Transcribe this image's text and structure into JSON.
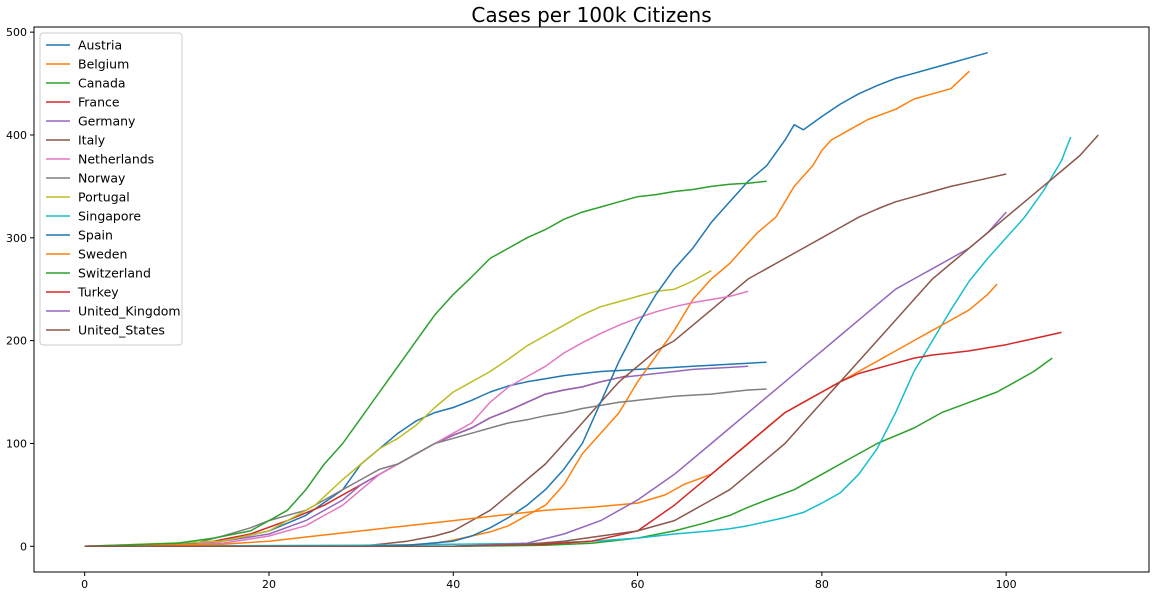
{
  "chart_data": {
    "type": "line",
    "title": "Cases per 100k Citizens",
    "xlabel": "",
    "ylabel": "",
    "xlim": [
      -5.5,
      115.5
    ],
    "ylim": [
      -25,
      505
    ],
    "xticks": [
      0,
      20,
      40,
      60,
      80,
      100
    ],
    "yticks": [
      0,
      100,
      200,
      300,
      400,
      500
    ],
    "grid": false,
    "legend_position": "top-left",
    "series": [
      {
        "name": "Austria",
        "color": "#1f77b4",
        "x": [
          0,
          10,
          15,
          20,
          24,
          28,
          30,
          32,
          34,
          36,
          38,
          40,
          42,
          44,
          46,
          48,
          50,
          52,
          54,
          56,
          58,
          60,
          62,
          64,
          66,
          68,
          70,
          72,
          74
        ],
        "y": [
          0,
          1,
          5,
          15,
          30,
          55,
          80,
          95,
          110,
          122,
          130,
          135,
          142,
          150,
          156,
          160,
          163,
          166,
          168,
          170,
          171,
          172,
          173,
          174,
          175,
          176,
          177,
          178,
          179
        ]
      },
      {
        "name": "Belgium",
        "color": "#ff7f0e",
        "x": [
          0,
          20,
          30,
          35,
          38,
          40,
          42,
          44,
          46,
          48,
          50,
          52,
          54,
          56,
          58,
          60,
          62,
          64,
          66,
          68,
          70,
          72,
          73,
          75,
          77,
          79,
          80,
          81,
          83,
          85,
          88,
          90,
          92,
          94,
          96
        ],
        "y": [
          0,
          0,
          0,
          1,
          3,
          6,
          10,
          14,
          20,
          30,
          40,
          60,
          90,
          110,
          130,
          160,
          185,
          210,
          240,
          260,
          275,
          295,
          305,
          320,
          350,
          370,
          385,
          395,
          405,
          415,
          425,
          435,
          440,
          445,
          462
        ]
      },
      {
        "name": "Canada",
        "color": "#2ca02c",
        "x": [
          0,
          40,
          50,
          55,
          60,
          64,
          67,
          70,
          72,
          74,
          77,
          80,
          83,
          86,
          90,
          93,
          96,
          99,
          101,
          103,
          105
        ],
        "y": [
          0,
          0,
          1,
          3,
          8,
          15,
          22,
          30,
          38,
          45,
          55,
          70,
          85,
          100,
          115,
          130,
          140,
          150,
          160,
          170,
          183
        ]
      },
      {
        "name": "France",
        "color": "#d62728",
        "x": [
          0,
          10,
          14,
          18,
          22,
          26,
          30,
          34,
          38,
          40,
          42,
          44,
          46,
          48,
          50,
          52,
          54,
          56,
          58,
          59
        ],
        "y": [
          0,
          2,
          5,
          12,
          25,
          40,
          60,
          80,
          100,
          108,
          115,
          125,
          132,
          140,
          148,
          152,
          155,
          160,
          164,
          166
        ]
      },
      {
        "name": "Germany",
        "color": "#9467bd",
        "x": [
          0,
          10,
          15,
          20,
          24,
          28,
          30,
          32,
          34,
          36,
          38,
          40,
          42,
          44,
          46,
          48,
          50,
          52,
          54,
          56,
          58,
          60,
          62,
          64,
          66,
          68,
          70,
          72
        ],
        "y": [
          0,
          1,
          5,
          12,
          25,
          45,
          60,
          70,
          80,
          90,
          100,
          108,
          115,
          125,
          132,
          140,
          148,
          152,
          155,
          160,
          164,
          166,
          168,
          170,
          172,
          173,
          174,
          175
        ]
      },
      {
        "name": "Italy",
        "color": "#8c564b",
        "x": [
          0,
          30,
          35,
          38,
          40,
          42,
          44,
          46,
          48,
          50,
          52,
          54,
          56,
          58,
          60,
          62,
          64,
          66,
          68,
          70,
          72,
          74,
          76,
          78,
          80,
          82,
          84,
          86,
          88,
          90,
          92,
          94,
          96,
          98,
          100
        ],
        "y": [
          0,
          0,
          5,
          10,
          15,
          25,
          35,
          50,
          65,
          80,
          100,
          120,
          140,
          160,
          175,
          190,
          200,
          215,
          230,
          245,
          260,
          270,
          280,
          290,
          300,
          310,
          320,
          328,
          335,
          340,
          345,
          350,
          354,
          358,
          362
        ]
      },
      {
        "name": "Netherlands",
        "color": "#e377c2",
        "x": [
          0,
          15,
          20,
          24,
          26,
          28,
          30,
          32,
          34,
          36,
          38,
          40,
          42,
          44,
          46,
          48,
          50,
          52,
          54,
          56,
          58,
          60,
          62,
          64,
          66,
          68,
          70,
          72
        ],
        "y": [
          0,
          3,
          10,
          20,
          30,
          40,
          55,
          70,
          80,
          90,
          100,
          110,
          120,
          140,
          155,
          165,
          175,
          188,
          198,
          207,
          215,
          222,
          228,
          233,
          237,
          240,
          243,
          248
        ]
      },
      {
        "name": "Norway",
        "color": "#7f7f7f",
        "x": [
          0,
          12,
          15,
          18,
          20,
          22,
          24,
          26,
          28,
          30,
          32,
          34,
          36,
          38,
          40,
          42,
          44,
          46,
          48,
          50,
          52,
          54,
          56,
          58,
          60,
          62,
          64,
          66,
          68,
          70,
          72,
          74
        ],
        "y": [
          0,
          3,
          10,
          18,
          25,
          30,
          35,
          45,
          55,
          65,
          75,
          80,
          90,
          100,
          105,
          110,
          115,
          120,
          123,
          127,
          130,
          134,
          137,
          140,
          142,
          144,
          146,
          147,
          148,
          150,
          152,
          153
        ]
      },
      {
        "name": "Portugal",
        "color": "#bcbd22",
        "x": [
          0,
          15,
          20,
          25,
          28,
          30,
          32,
          34,
          36,
          38,
          40,
          42,
          44,
          46,
          48,
          50,
          52,
          54,
          56,
          58,
          60,
          62,
          64,
          66,
          68
        ],
        "y": [
          0,
          5,
          15,
          40,
          65,
          80,
          95,
          105,
          118,
          135,
          150,
          160,
          170,
          182,
          195,
          205,
          215,
          225,
          233,
          238,
          243,
          248,
          250,
          258,
          268
        ]
      },
      {
        "name": "Singapore",
        "color": "#17becf",
        "x": [
          0,
          30,
          40,
          50,
          55,
          60,
          64,
          68,
          70,
          72,
          74,
          76,
          78,
          80,
          82,
          84,
          86,
          88,
          90,
          92,
          94,
          96,
          98,
          100,
          102,
          104,
          106,
          107
        ],
        "y": [
          0,
          1,
          2,
          3,
          5,
          8,
          12,
          15,
          17,
          20,
          24,
          28,
          33,
          42,
          52,
          70,
          95,
          130,
          170,
          200,
          230,
          258,
          280,
          300,
          320,
          345,
          375,
          398
        ]
      },
      {
        "name": "Spain",
        "color": "#1f77b4",
        "x": [
          0,
          30,
          35,
          40,
          42,
          44,
          46,
          48,
          50,
          52,
          54,
          56,
          58,
          60,
          62,
          64,
          66,
          68,
          70,
          72,
          74,
          76,
          77,
          78,
          80,
          82,
          84,
          86,
          88,
          90,
          92,
          94,
          96,
          98
        ],
        "y": [
          0,
          0,
          1,
          5,
          10,
          18,
          28,
          40,
          55,
          75,
          100,
          140,
          180,
          215,
          245,
          270,
          290,
          315,
          335,
          355,
          370,
          395,
          410,
          405,
          418,
          430,
          440,
          448,
          455,
          460,
          465,
          470,
          475,
          480
        ]
      },
      {
        "name": "Sweden",
        "color": "#ff7f0e",
        "x": [
          0,
          15,
          20,
          25,
          30,
          35,
          40,
          45,
          50,
          55,
          60,
          63,
          65,
          68,
          70,
          72,
          74,
          76,
          78,
          80,
          82,
          84,
          86,
          88,
          90,
          92,
          94,
          96,
          98,
          99
        ],
        "y": [
          0,
          2,
          5,
          10,
          15,
          20,
          25,
          30,
          35,
          38,
          42,
          50,
          60,
          70,
          85,
          100,
          115,
          130,
          140,
          150,
          160,
          170,
          180,
          190,
          200,
          210,
          220,
          230,
          245,
          255
        ]
      },
      {
        "name": "Switzerland",
        "color": "#2ca02c",
        "x": [
          0,
          10,
          14,
          18,
          20,
          22,
          24,
          26,
          28,
          30,
          32,
          34,
          36,
          38,
          40,
          42,
          44,
          46,
          48,
          50,
          52,
          54,
          56,
          58,
          60,
          62,
          64,
          66,
          68,
          70,
          72,
          74
        ],
        "y": [
          0,
          3,
          8,
          15,
          25,
          35,
          55,
          80,
          100,
          125,
          150,
          175,
          200,
          225,
          245,
          262,
          280,
          290,
          300,
          308,
          318,
          325,
          330,
          335,
          340,
          342,
          345,
          347,
          350,
          352,
          353,
          355
        ]
      },
      {
        "name": "Turkey",
        "color": "#d62728",
        "x": [
          0,
          40,
          50,
          55,
          60,
          64,
          66,
          68,
          70,
          72,
          74,
          76,
          78,
          80,
          82,
          84,
          86,
          88,
          90,
          92,
          94,
          96,
          98,
          100,
          102,
          104,
          106
        ],
        "y": [
          0,
          0,
          2,
          5,
          15,
          40,
          55,
          70,
          85,
          100,
          115,
          130,
          140,
          150,
          160,
          168,
          173,
          178,
          183,
          186,
          188,
          190,
          193,
          196,
          200,
          204,
          208
        ]
      },
      {
        "name": "United_Kingdom",
        "color": "#9467bd",
        "x": [
          0,
          40,
          48,
          52,
          56,
          60,
          64,
          68,
          70,
          72,
          74,
          76,
          78,
          80,
          82,
          84,
          86,
          88,
          90,
          92,
          94,
          96,
          98,
          100
        ],
        "y": [
          0,
          0,
          3,
          12,
          25,
          45,
          70,
          100,
          115,
          130,
          145,
          160,
          175,
          190,
          205,
          220,
          235,
          250,
          260,
          270,
          280,
          290,
          305,
          325
        ]
      },
      {
        "name": "United_States",
        "color": "#8c564b",
        "x": [
          0,
          40,
          48,
          52,
          56,
          60,
          64,
          66,
          68,
          70,
          72,
          74,
          76,
          78,
          80,
          82,
          84,
          86,
          88,
          90,
          92,
          94,
          96,
          98,
          100,
          102,
          104,
          106,
          108,
          110
        ],
        "y": [
          0,
          0,
          2,
          5,
          10,
          15,
          25,
          35,
          45,
          55,
          70,
          85,
          100,
          120,
          140,
          160,
          180,
          200,
          220,
          240,
          260,
          275,
          290,
          305,
          320,
          335,
          350,
          365,
          380,
          400
        ]
      }
    ]
  }
}
